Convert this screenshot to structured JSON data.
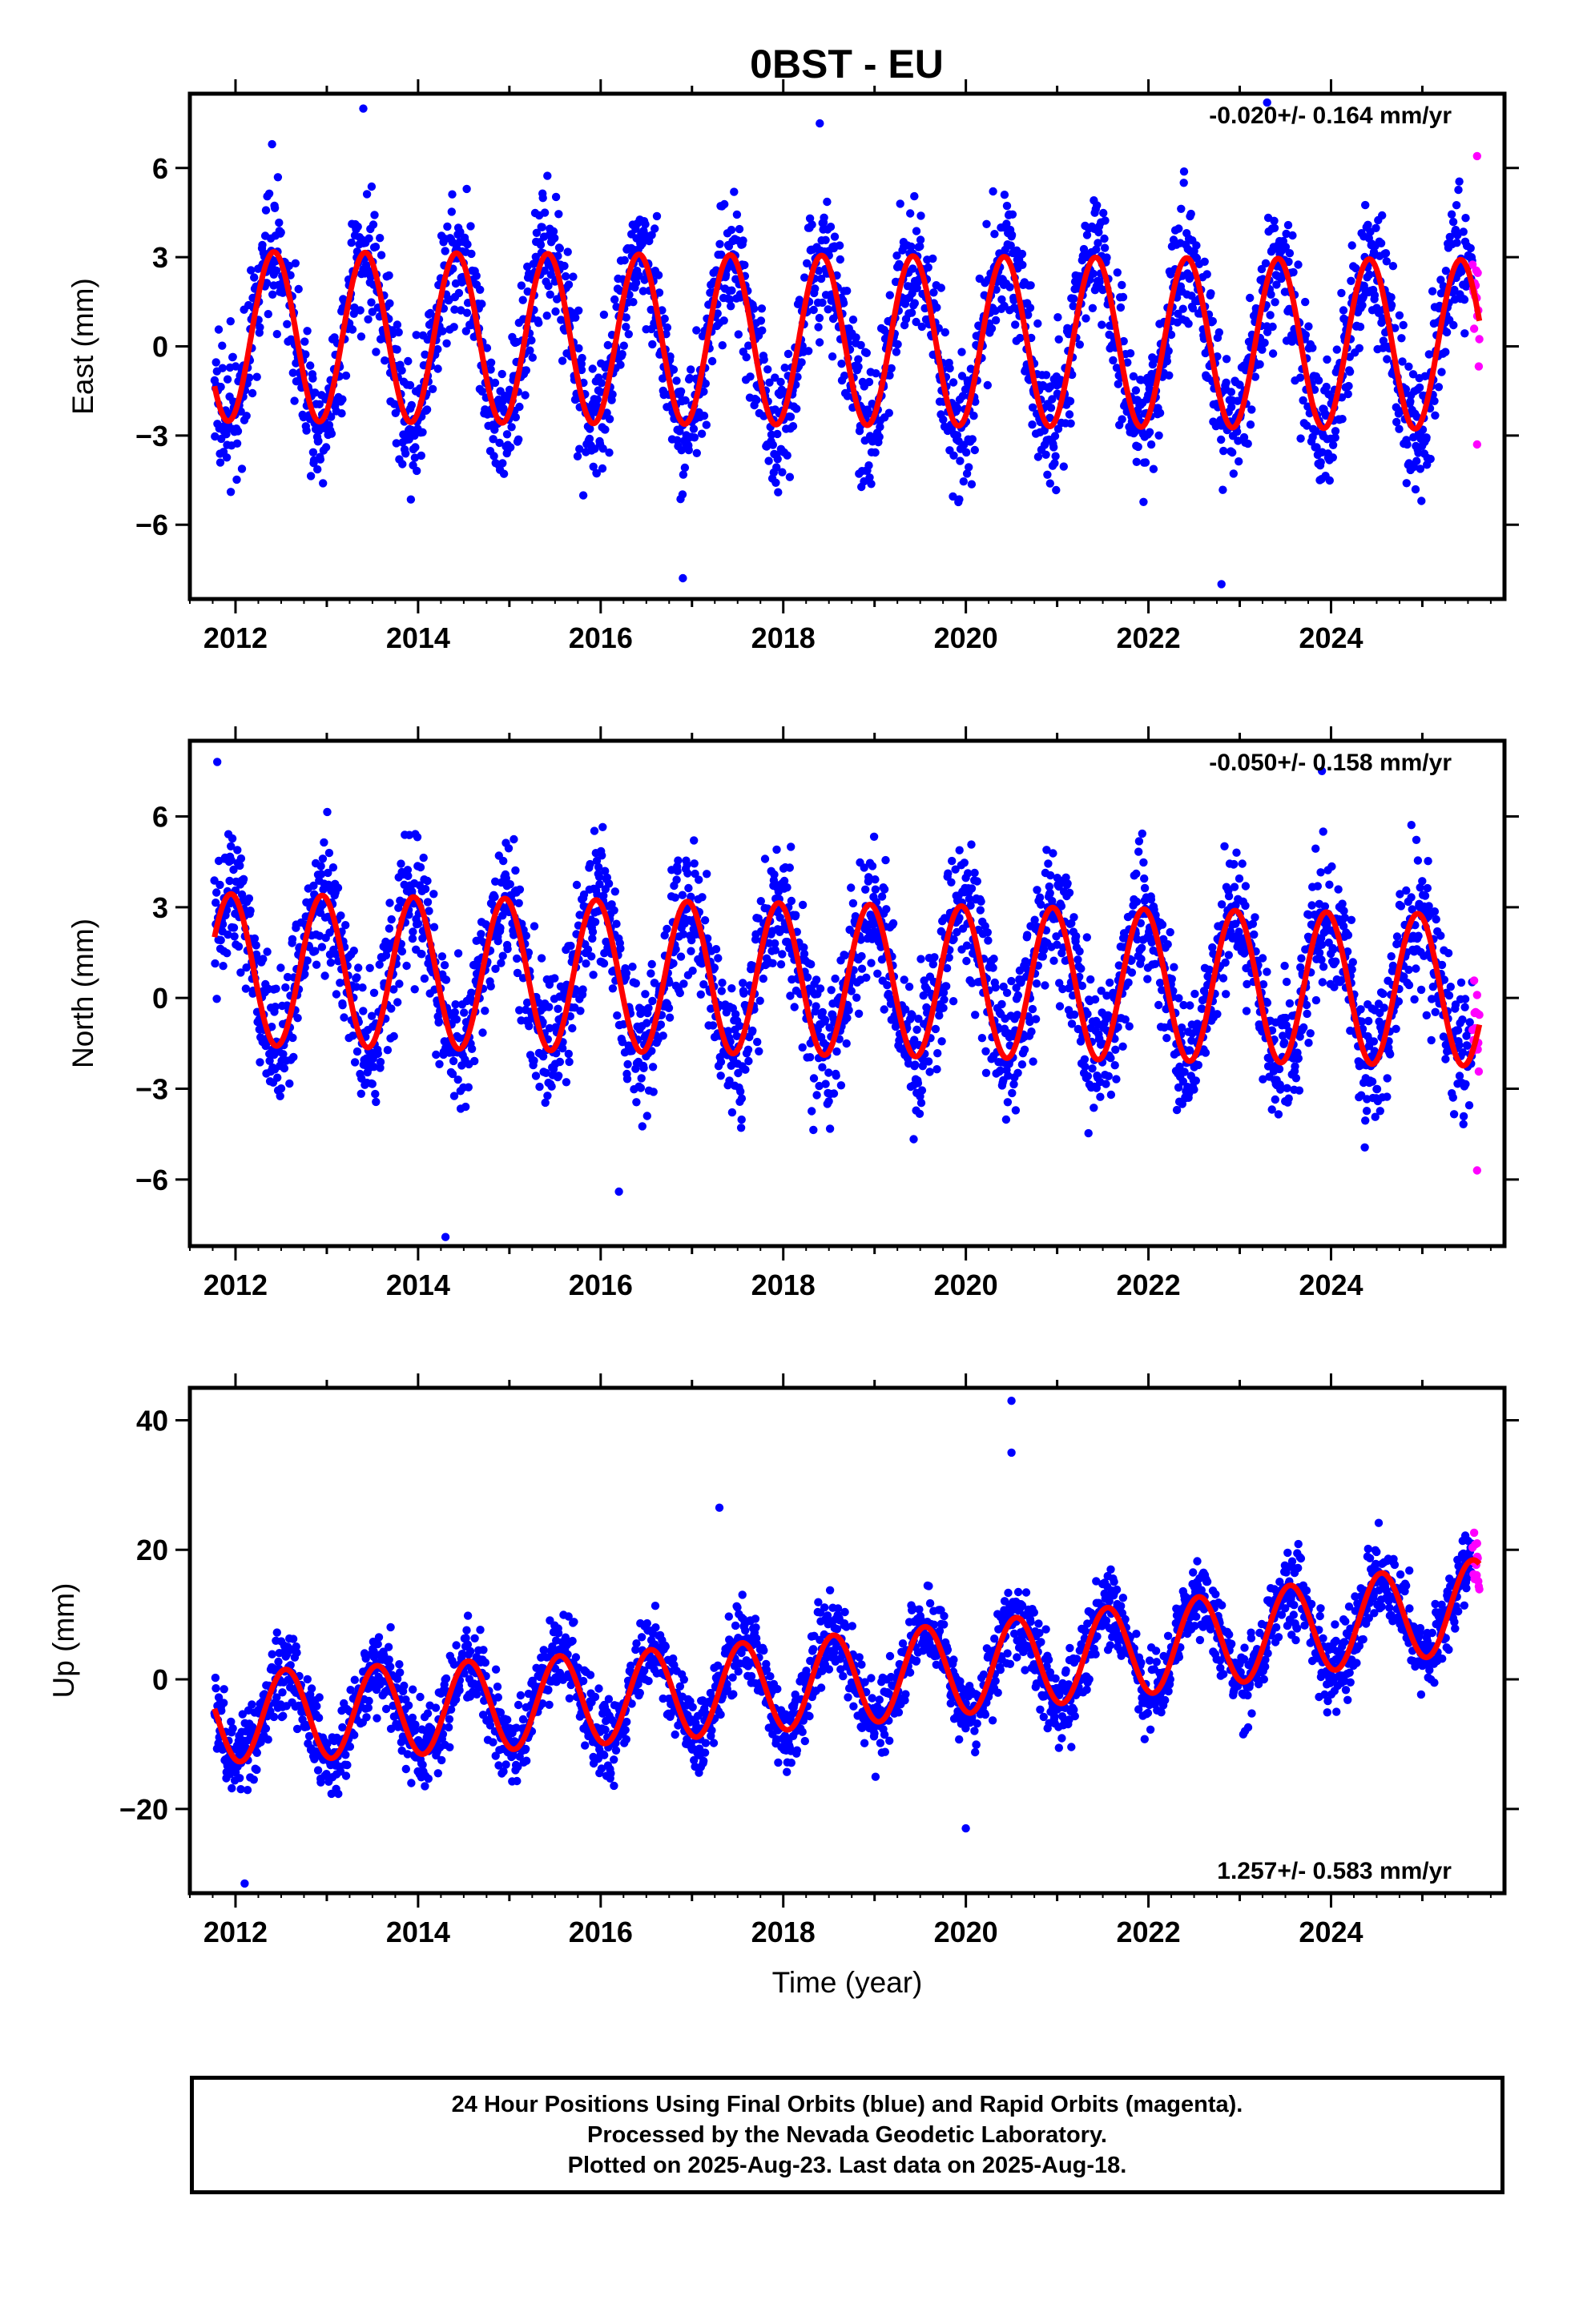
{
  "title": "0BST - EU",
  "footer": {
    "line1": "24 Hour Positions Using Final Orbits (blue) and Rapid Orbits (magenta).",
    "line2": "Processed by the Nevada Geodetic Laboratory.",
    "line3": "Plotted on 2025-Aug-23. Last data on 2025-Aug-18."
  },
  "colors": {
    "final_points": "#0000ff",
    "rapid_points": "#ff00ff",
    "fit_line": "#ff0000",
    "axes": "#000000"
  },
  "chart_data": [
    {
      "type": "scatter",
      "name": "east",
      "ylabel": "East (mm)",
      "xlim": [
        2011.5,
        2025.9
      ],
      "ylim": [
        -8.5,
        8.5
      ],
      "xticks": [
        2012,
        2014,
        2016,
        2018,
        2020,
        2022,
        2024
      ],
      "yticks": [
        -6,
        -3,
        0,
        3,
        6
      ],
      "rate_annotation": "-0.020+/- 0.164 mm/yr",
      "annotation_position": "top-right",
      "data_span": [
        2011.77,
        2025.63
      ],
      "rapid_span": [
        2025.55,
        2025.63
      ],
      "fit_model": {
        "offset": 0.2,
        "trend_per_year": -0.02,
        "annual_amplitude": 2.85,
        "peak_phase_year_fraction": 0.42,
        "reference_year": 2018.7
      },
      "scatter_spread": 1.6,
      "sample_points": [
        [
          2012.4,
          6.8
        ],
        [
          2013.4,
          8.0
        ],
        [
          2016.9,
          -7.8
        ],
        [
          2018.4,
          7.5
        ],
        [
          2022.8,
          -8.0
        ],
        [
          2023.3,
          8.2
        ],
        [
          2025.6,
          6.4
        ],
        [
          2025.6,
          -3.3
        ]
      ]
    },
    {
      "type": "scatter",
      "name": "north",
      "ylabel": "North (mm)",
      "xlim": [
        2011.5,
        2025.9
      ],
      "ylim": [
        -8.2,
        8.5
      ],
      "xticks": [
        2012,
        2014,
        2016,
        2018,
        2020,
        2022,
        2024
      ],
      "yticks": [
        -6,
        -3,
        0,
        3,
        6
      ],
      "rate_annotation": "-0.050+/- 0.158 mm/yr",
      "annotation_position": "top-right",
      "data_span": [
        2011.77,
        2025.63
      ],
      "rapid_span": [
        2025.55,
        2025.63
      ],
      "fit_model": {
        "offset": 0.6,
        "trend_per_year": -0.05,
        "annual_amplitude": 2.5,
        "peak_phase_year_fraction": 0.95,
        "reference_year": 2018.7
      },
      "scatter_spread": 1.6,
      "sample_points": [
        [
          2011.8,
          7.8
        ],
        [
          2014.3,
          -7.9
        ],
        [
          2016.2,
          -6.4
        ],
        [
          2023.9,
          7.5
        ],
        [
          2025.6,
          -5.7
        ],
        [
          2025.6,
          0.1
        ]
      ]
    },
    {
      "type": "scatter",
      "name": "up",
      "ylabel": "Up (mm)",
      "xlabel": "Time (year)",
      "xlim": [
        2011.5,
        2025.9
      ],
      "ylim": [
        -33,
        45
      ],
      "xticks": [
        2012,
        2014,
        2016,
        2018,
        2020,
        2022,
        2024
      ],
      "yticks": [
        -20,
        0,
        20,
        40
      ],
      "rate_annotation": "1.257+/- 0.583 mm/yr",
      "annotation_position": "bottom-right",
      "data_span": [
        2011.77,
        2025.63
      ],
      "rapid_span": [
        2025.55,
        2025.63
      ],
      "fit_model": {
        "offset": 0.0,
        "trend_per_year": 1.257,
        "trend_quadratic": 0.06,
        "annual_amplitude": 7.0,
        "peak_phase_year_fraction": 0.55,
        "reference_year": 2018.7
      },
      "scatter_spread": 4.5,
      "sample_points": [
        [
          2012.1,
          -31.5
        ],
        [
          2017.3,
          26.5
        ],
        [
          2020.0,
          -23.0
        ],
        [
          2020.5,
          43.0
        ],
        [
          2020.5,
          35.0
        ],
        [
          2025.6,
          21.0
        ]
      ]
    }
  ]
}
